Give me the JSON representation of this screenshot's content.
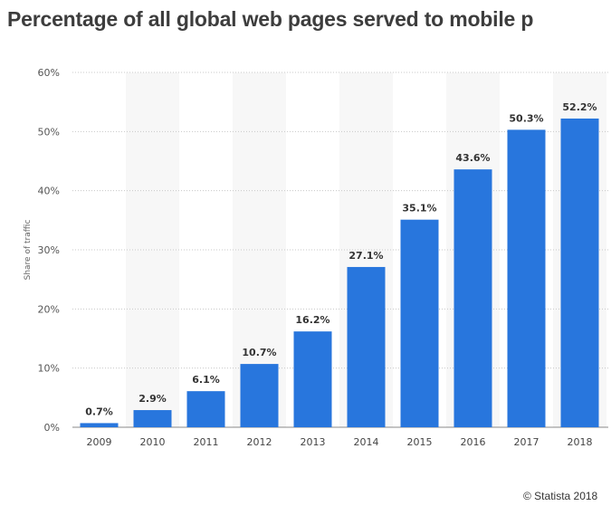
{
  "title": "Percentage of all global web pages served to mobile p",
  "credit": "© Statista 2018",
  "chart_data": {
    "type": "bar",
    "title": "Percentage of all global web pages served to mobile p",
    "xlabel": "",
    "ylabel": "Share of traffic",
    "categories": [
      "2009",
      "2010",
      "2011",
      "2012",
      "2013",
      "2014",
      "2015",
      "2016",
      "2017",
      "2018"
    ],
    "values": [
      0.7,
      2.9,
      6.1,
      10.7,
      16.2,
      27.1,
      35.1,
      43.6,
      50.3,
      52.2
    ],
    "data_labels": [
      "0.7%",
      "2.9%",
      "6.1%",
      "10.7%",
      "16.2%",
      "27.1%",
      "35.1%",
      "43.6%",
      "50.3%",
      "52.2%"
    ],
    "ylim": [
      0,
      60
    ],
    "yticks": [
      "0%",
      "10%",
      "20%",
      "30%",
      "40%",
      "50%",
      "60%"
    ],
    "grid": true,
    "bar_color": "#2876dd"
  }
}
